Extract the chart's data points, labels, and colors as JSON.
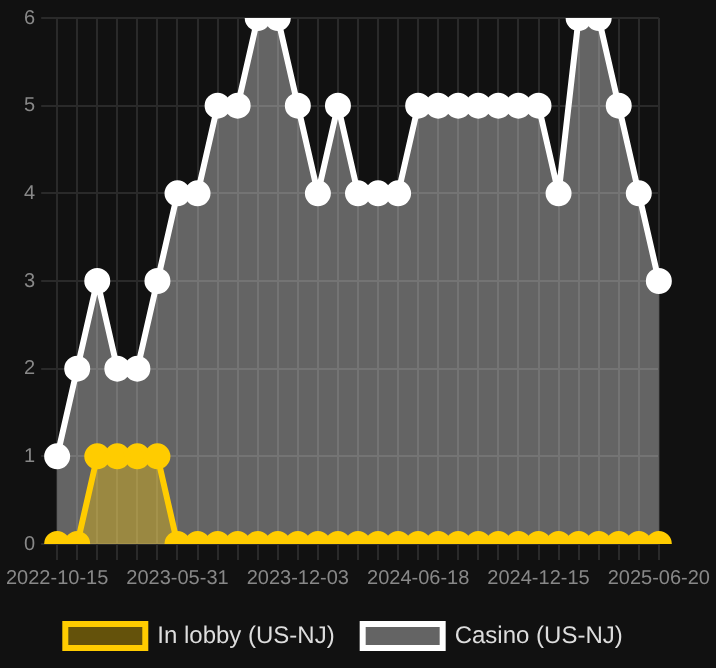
{
  "chart_data": {
    "type": "area",
    "categories": [
      "2022-10-15",
      null,
      null,
      null,
      null,
      null,
      "2023-05-31",
      null,
      null,
      null,
      null,
      null,
      "2023-12-03",
      null,
      null,
      null,
      null,
      null,
      "2024-06-18",
      null,
      null,
      null,
      null,
      null,
      "2024-12-15",
      null,
      null,
      null,
      null,
      null,
      "2025-06-20"
    ],
    "series": [
      {
        "name": "In lobby (US-NJ)",
        "color": "#ffcc00",
        "values": [
          0,
          0,
          1,
          1,
          1,
          1,
          0,
          0,
          0,
          0,
          0,
          0,
          0,
          0,
          0,
          0,
          0,
          0,
          0,
          0,
          0,
          0,
          0,
          0,
          0,
          0,
          0,
          0,
          0,
          0,
          0
        ]
      },
      {
        "name": "Casino (US-NJ)",
        "color": "#ffffff",
        "values": [
          1,
          2,
          3,
          2,
          2,
          3,
          4,
          4,
          5,
          5,
          6,
          6,
          5,
          4,
          5,
          4,
          4,
          4,
          5,
          5,
          5,
          5,
          5,
          5,
          5,
          4,
          6,
          6,
          5,
          4,
          3
        ]
      }
    ],
    "ylim": [
      0,
      6
    ],
    "yticks": [
      0,
      1,
      2,
      3,
      4,
      5,
      6
    ],
    "grid": true,
    "legend": "bottom",
    "marker": "circle"
  }
}
